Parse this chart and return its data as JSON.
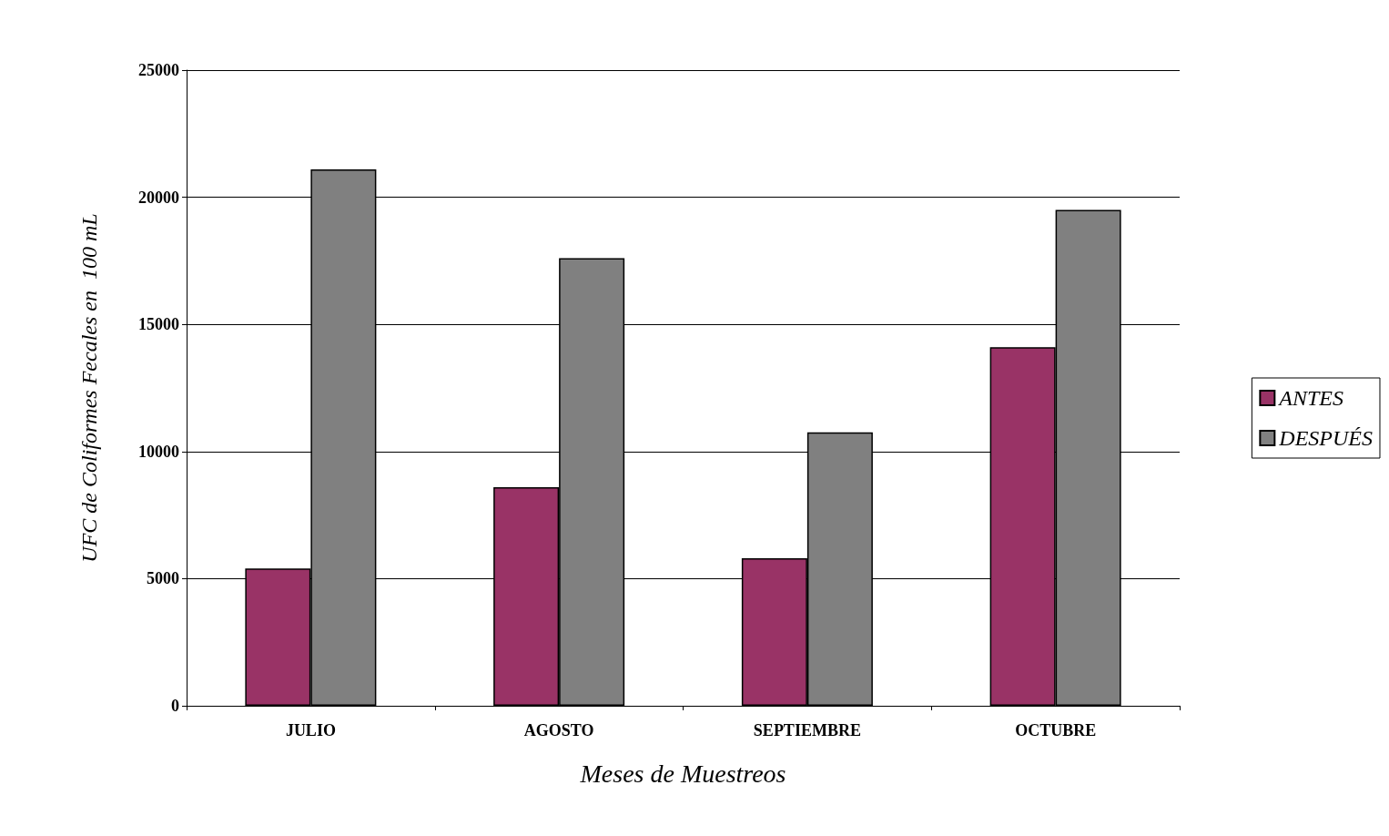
{
  "chart_data": {
    "type": "bar",
    "xlabel": "Meses de Muestreos",
    "ylabel": "UFC de Coliformes Fecales en  100 mL",
    "categories": [
      "JULIO",
      "AGOSTO",
      "SEPTIEMBRE",
      "OCTUBRE"
    ],
    "series": [
      {
        "name": "ANTES",
        "color": "#993366",
        "values": [
          5400,
          8600,
          5800,
          14100
        ]
      },
      {
        "name": "DESPUÉS",
        "color": "#808080",
        "values": [
          21100,
          17600,
          10750,
          19500
        ]
      }
    ],
    "ylim": [
      0,
      25000
    ],
    "yticks": [
      0,
      5000,
      10000,
      15000,
      20000,
      25000
    ],
    "grid": "y",
    "legend": "right"
  }
}
